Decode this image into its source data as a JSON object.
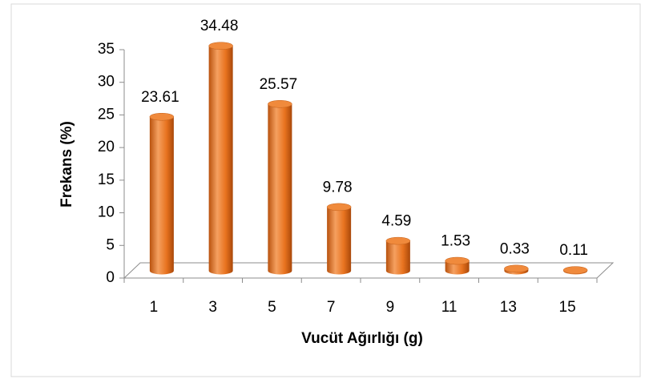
{
  "chart_data": {
    "type": "bar3d",
    "x_label": "Vucüt Ağırlığı (g)",
    "y_label": "Frekans (%)",
    "categories": [
      "1",
      "3",
      "5",
      "7",
      "9",
      "11",
      "13",
      "15"
    ],
    "values": [
      23.61,
      34.48,
      25.57,
      9.78,
      4.59,
      1.53,
      0.33,
      0.11
    ],
    "color": "#e8731f",
    "ylim": [
      0,
      35
    ],
    "yticks": [
      0,
      5,
      10,
      15,
      20,
      25,
      30,
      35
    ],
    "grid": false
  }
}
